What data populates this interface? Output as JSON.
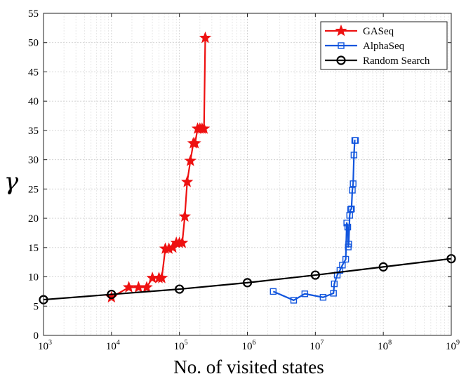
{
  "chart_data": {
    "type": "line",
    "title": "",
    "xlabel": "No. of visited states",
    "ylabel": "γ",
    "xscale": "log",
    "xlim": [
      1000,
      1000000000
    ],
    "ylim": [
      0,
      55
    ],
    "grid": true,
    "legend_position": "top-right",
    "x_ticks": [
      {
        "value": 1000,
        "base": "10",
        "exp": "3"
      },
      {
        "value": 10000,
        "base": "10",
        "exp": "4"
      },
      {
        "value": 100000,
        "base": "10",
        "exp": "5"
      },
      {
        "value": 1000000,
        "base": "10",
        "exp": "6"
      },
      {
        "value": 10000000,
        "base": "10",
        "exp": "7"
      },
      {
        "value": 100000000,
        "base": "10",
        "exp": "8"
      },
      {
        "value": 1000000000,
        "base": "10",
        "exp": "9"
      }
    ],
    "y_ticks": [
      "0",
      "5",
      "10",
      "15",
      "20",
      "25",
      "30",
      "35",
      "40",
      "45",
      "50",
      "55"
    ],
    "series": [
      {
        "name": "GASeq",
        "color": "#ee1111",
        "marker": "star",
        "x": [
          10000,
          18000,
          25000,
          33000,
          40000,
          50000,
          55000,
          62000,
          70000,
          80000,
          90000,
          100000,
          110000,
          120000,
          130000,
          145000,
          160000,
          170000,
          185000,
          200000,
          215000,
          230000,
          240000
        ],
        "y": [
          6.5,
          8.2,
          8.2,
          8.2,
          9.8,
          9.8,
          9.8,
          14.8,
          14.8,
          15.0,
          15.8,
          15.8,
          15.8,
          20.3,
          26.2,
          29.8,
          32.8,
          32.8,
          35.3,
          35.3,
          35.3,
          35.3,
          50.8
        ]
      },
      {
        "name": "AlphaSeq",
        "color": "#1155dd",
        "marker": "square",
        "x": [
          2400000,
          4800000,
          7000000,
          13000000,
          18500000,
          19000000,
          21000000,
          23000000,
          25000000,
          28000000,
          29000000,
          30000000,
          30500000,
          31000000,
          32000000,
          33000000,
          34000000,
          35000000,
          36000000,
          37000000,
          38000000,
          39000000
        ],
        "y": [
          7.5,
          6.0,
          7.1,
          6.5,
          7.2,
          8.8,
          10.3,
          11.1,
          12.0,
          13.0,
          19.2,
          18.5,
          15.1,
          15.6,
          20.5,
          21.5,
          21.6,
          24.8,
          25.9,
          30.8,
          33.3,
          33.3
        ]
      },
      {
        "name": "Random Search",
        "color": "#000000",
        "marker": "circle",
        "x": [
          1000,
          10000,
          100000,
          1000000,
          10000000,
          100000000,
          1000000000
        ],
        "y": [
          6.1,
          7.0,
          7.9,
          9.0,
          10.3,
          11.7,
          13.1
        ]
      }
    ]
  }
}
